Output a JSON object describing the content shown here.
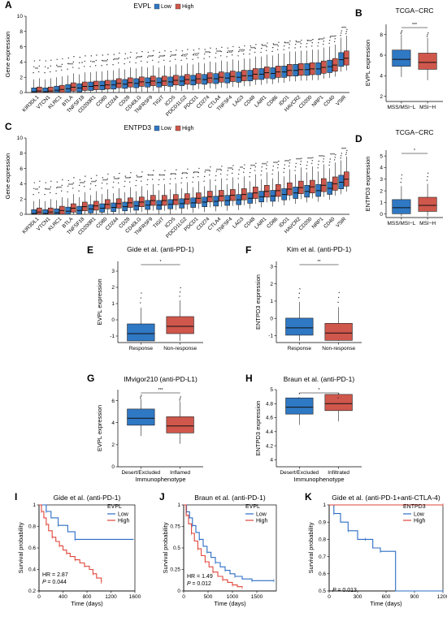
{
  "colors": {
    "low": "#2f78c4",
    "high": "#d0574c",
    "km_low": "#2b6cc4",
    "km_high": "#e0463a"
  },
  "chart_data": [
    {
      "panel": "A",
      "type": "box",
      "title": "EVPL",
      "legend": [
        "Low",
        "High"
      ],
      "ylabel": "Gene expression",
      "ylim": [
        0,
        10
      ],
      "yticks": [
        0,
        2,
        4,
        6,
        8,
        10
      ],
      "categories": [
        "KIR3DL1",
        "VTCN1",
        "KLRC1",
        "BTLA",
        "TNFSF18",
        "CD200R1",
        "CD80",
        "CD244",
        "CD28",
        "CD40LG",
        "TNFRSF9",
        "TIGIT",
        "ICOS",
        "PDCD1LG2",
        "PDCD1",
        "CD274",
        "CTLA4",
        "TNFSF4",
        "LAG3",
        "CD48",
        "LAIR1",
        "CD86",
        "IDO1",
        "HAVCR2",
        "CD200",
        "NRP1",
        "CD40",
        "VSIR"
      ],
      "sig": [
        "**",
        "*",
        "***",
        "***",
        "*",
        "**",
        "***",
        "***",
        "*",
        "***",
        "***",
        "***",
        "***",
        "ns",
        "ns",
        "***",
        "***",
        "ns",
        "ns",
        "***",
        "***",
        "***",
        "***",
        "***",
        "***",
        "***",
        "***",
        "***"
      ],
      "low_median": [
        0.1,
        0.1,
        0.3,
        0.5,
        0.6,
        0.8,
        0.9,
        1.0,
        1.1,
        1.2,
        1.3,
        1.3,
        1.4,
        1.5,
        1.6,
        1.7,
        1.8,
        1.9,
        2.0,
        2.2,
        2.4,
        2.5,
        2.7,
        2.9,
        3.0,
        3.1,
        3.4,
        4.3
      ],
      "high_median": [
        0.2,
        0.2,
        0.4,
        0.7,
        0.8,
        0.9,
        1.0,
        1.2,
        1.3,
        1.4,
        1.5,
        1.5,
        1.6,
        1.7,
        1.8,
        1.9,
        2.0,
        2.1,
        2.2,
        2.4,
        2.6,
        2.7,
        2.9,
        3.0,
        3.1,
        3.3,
        3.6,
        4.5
      ]
    },
    {
      "panel": "B",
      "type": "box",
      "title": "TCGA−CRC",
      "ylabel": "EVPL expression",
      "categories": [
        "MSS/MSI−L",
        "MSI−H"
      ],
      "sig": "***",
      "ylim": [
        1.5,
        9
      ],
      "yticks": [
        2,
        4,
        6,
        8
      ],
      "medians": [
        5.6,
        5.3
      ]
    },
    {
      "panel": "C",
      "type": "box",
      "title": "ENTPD3",
      "legend": [
        "Low",
        "High"
      ],
      "ylabel": "Gene expression",
      "ylim": [
        0,
        10
      ],
      "yticks": [
        0,
        2,
        4,
        6,
        8,
        10
      ],
      "categories": [
        "KIR3DL1",
        "VTCN1",
        "KLRC1",
        "BTLA",
        "TNFSF18",
        "CD200R1",
        "CD80",
        "CD244",
        "CD28",
        "CD40LG",
        "TNFRSF9",
        "TIGIT",
        "ICOS",
        "PDCD1LG2",
        "PDCD1",
        "CD274",
        "CTLA4",
        "TNFSF4",
        "LAG3",
        "CD48",
        "LAIR1",
        "CD86",
        "IDO1",
        "HAVCR2",
        "CD200",
        "NRP1",
        "CD40",
        "VSIR"
      ],
      "sig": [
        "**",
        "***",
        "***",
        "***",
        "***",
        "***",
        "***",
        "***",
        "***",
        "***",
        "***",
        "***",
        "***",
        "***",
        "***",
        "***",
        "***",
        "***",
        "**",
        "***",
        "***",
        "***",
        "***",
        "***",
        "***",
        "***",
        "***",
        "***"
      ],
      "low_median": [
        0.1,
        0.1,
        0.2,
        0.4,
        0.5,
        0.7,
        0.8,
        0.9,
        1.0,
        1.1,
        1.2,
        1.2,
        1.3,
        1.4,
        1.5,
        1.6,
        1.7,
        1.8,
        1.9,
        2.1,
        2.3,
        2.4,
        2.6,
        2.8,
        3.0,
        3.1,
        3.4,
        4.2
      ],
      "high_median": [
        0.3,
        0.3,
        0.5,
        0.8,
        1.0,
        1.1,
        1.3,
        1.4,
        1.5,
        1.6,
        1.8,
        1.8,
        1.9,
        2.0,
        2.1,
        2.3,
        2.4,
        2.5,
        2.6,
        2.8,
        3.0,
        3.1,
        3.3,
        3.5,
        3.6,
        3.8,
        4.0,
        4.6
      ]
    },
    {
      "panel": "D",
      "type": "box",
      "title": "TCGA−CRC",
      "ylabel": "ENTPD3 expression",
      "categories": [
        "MSS/MSI−L",
        "MSI−H"
      ],
      "sig": "*",
      "ylim": [
        -0.3,
        5.5
      ],
      "yticks": [
        0,
        1,
        2,
        3,
        4,
        5
      ],
      "medians": [
        0.55,
        0.75
      ]
    },
    {
      "panel": "E",
      "type": "box",
      "title": "Gide et al. (anti-PD-1)",
      "ylabel": "EVPL expression",
      "categories": [
        "Response",
        "Non-response"
      ],
      "sig": "*",
      "ylim": [
        -1.4,
        3.6
      ],
      "yticks": [
        -1,
        0,
        1,
        2,
        3
      ],
      "medians": [
        -0.85,
        -0.4
      ]
    },
    {
      "panel": "F",
      "type": "box",
      "title": "Kim et al. (anti-PD-1)",
      "ylabel": "ENTPD3 expression",
      "categories": [
        "Response",
        "Non-response"
      ],
      "sig": "**",
      "ylim": [
        -1.4,
        3.3
      ],
      "yticks": [
        -1,
        0,
        1,
        2,
        3
      ],
      "medians": [
        -0.55,
        -0.85
      ]
    },
    {
      "panel": "G",
      "type": "box",
      "title": "IMvigor210 (anti-PD-L1)",
      "ylabel": "EVPL expression",
      "xlabel": "Immunophenotype",
      "categories": [
        "Desert/Excluded",
        "Inflamed"
      ],
      "sig": "***",
      "ylim": [
        0,
        7
      ],
      "yticks": [
        0,
        2,
        4,
        6
      ],
      "medians": [
        4.4,
        3.7
      ]
    },
    {
      "panel": "H",
      "type": "box",
      "title": "Braun et al. (anti-PD-1)",
      "ylabel": "ENTPD3 expression",
      "xlabel": "Immunophenotype",
      "categories": [
        "Desert/Excluded",
        "Infiltrated"
      ],
      "sig": "*",
      "ylim": [
        3.9,
        5.0
      ],
      "yticks": [
        4.0,
        4.2,
        4.4,
        4.6,
        4.8,
        5.0
      ],
      "medians": [
        4.75,
        4.8
      ]
    },
    {
      "panel": "I",
      "type": "line",
      "title": "Gide et al. (anti-PD-1)",
      "legend_title": "EVPL",
      "legend": [
        "Low",
        "High"
      ],
      "xlabel": "Time (days)",
      "ylabel": "Survival probability",
      "xlim": [
        0,
        1600
      ],
      "xticks": [
        0,
        400,
        800,
        1200,
        1600
      ],
      "ylim": [
        0.2,
        1.0
      ],
      "yticks": [
        0.2,
        0.4,
        0.6,
        0.8,
        1.0
      ],
      "hr": "HR = 2.87",
      "p": "= 0.044",
      "series": [
        {
          "name": "Low",
          "x": [
            0,
            120,
            200,
            320,
            480,
            600,
            1580
          ],
          "y": [
            1.0,
            0.94,
            0.88,
            0.81,
            0.75,
            0.68,
            0.68
          ]
        },
        {
          "name": "High",
          "x": [
            0,
            40,
            80,
            120,
            160,
            220,
            280,
            340,
            400,
            460,
            520,
            600,
            680,
            760,
            840,
            900,
            960,
            1040
          ],
          "y": [
            1.0,
            0.94,
            0.88,
            0.82,
            0.76,
            0.7,
            0.66,
            0.62,
            0.58,
            0.55,
            0.52,
            0.49,
            0.46,
            0.43,
            0.4,
            0.36,
            0.32,
            0.28
          ]
        }
      ]
    },
    {
      "panel": "J",
      "type": "line",
      "title": "Braun et al. (anti-PD-1)",
      "legend_title": "EVPL",
      "legend": [
        "Low",
        "High"
      ],
      "xlabel": "Time (days)",
      "ylabel": "Survival probability",
      "xlim": [
        0,
        1900
      ],
      "xticks": [
        0,
        500,
        1000,
        1500
      ],
      "ylim": [
        0,
        1.0
      ],
      "yticks": [
        0,
        0.25,
        0.5,
        0.75,
        1.0
      ],
      "hr": "HR = 1.49",
      "p": "= 0.012",
      "series": [
        {
          "name": "Low",
          "x": [
            0,
            60,
            120,
            180,
            250,
            320,
            400,
            480,
            560,
            650,
            750,
            850,
            950,
            1050,
            1200,
            1400,
            1600,
            1850
          ],
          "y": [
            1.0,
            0.92,
            0.85,
            0.76,
            0.68,
            0.6,
            0.52,
            0.45,
            0.39,
            0.33,
            0.28,
            0.24,
            0.2,
            0.17,
            0.14,
            0.12,
            0.12,
            0.12
          ]
        },
        {
          "name": "High",
          "x": [
            0,
            50,
            100,
            160,
            220,
            290,
            360,
            440,
            520,
            600,
            700,
            800,
            900,
            1000,
            1100,
            1200
          ],
          "y": [
            1.0,
            0.88,
            0.78,
            0.67,
            0.58,
            0.49,
            0.41,
            0.34,
            0.28,
            0.22,
            0.17,
            0.13,
            0.1,
            0.07,
            0.05,
            0.04
          ]
        }
      ]
    },
    {
      "panel": "K",
      "type": "line",
      "title": "Gide et al. (anti-PD-1+anti-CTLA-4)",
      "legend_title": "ENTPD3",
      "legend": [
        "Low",
        "High"
      ],
      "xlabel": "Time (days)",
      "ylabel": "Survival probability",
      "xlim": [
        0,
        1200
      ],
      "xticks": [
        0,
        300,
        600,
        900,
        1200
      ],
      "ylim": [
        0.5,
        1.0
      ],
      "yticks": [
        0.5,
        0.6,
        0.7,
        0.8,
        0.9,
        1.0
      ],
      "p": "= 0.013",
      "series": [
        {
          "name": "Low",
          "x": [
            0,
            50,
            120,
            200,
            300,
            380,
            460,
            540,
            700,
            1200
          ],
          "y": [
            1.0,
            0.95,
            0.9,
            0.85,
            0.8,
            0.8,
            0.75,
            0.73,
            0.5,
            0.5
          ]
        },
        {
          "name": "High",
          "x": [
            0,
            1200
          ],
          "y": [
            1.0,
            1.0
          ]
        }
      ]
    }
  ]
}
